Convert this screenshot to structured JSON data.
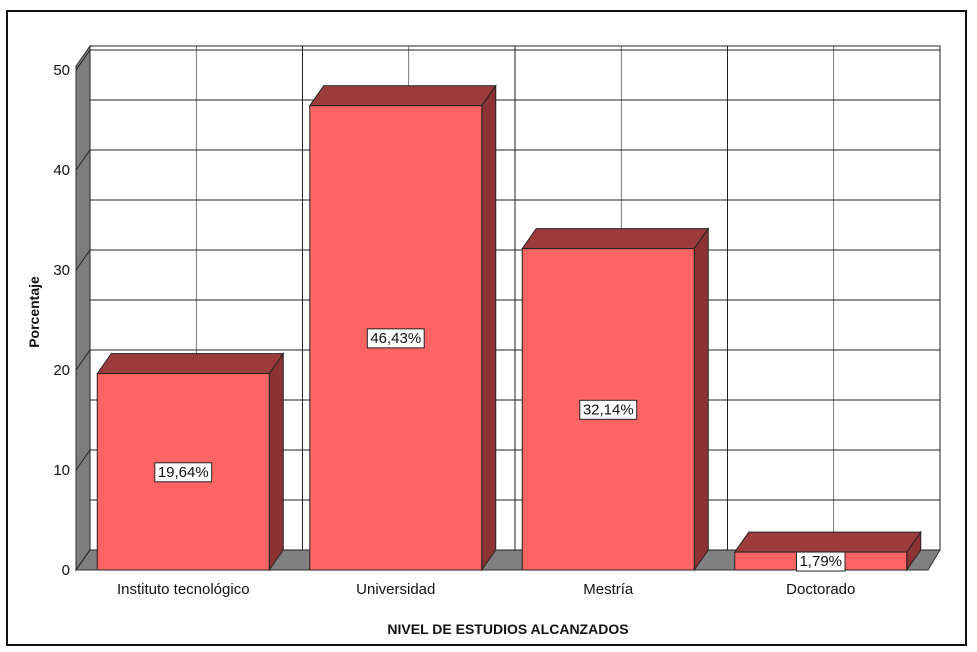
{
  "chart_data": {
    "type": "bar",
    "categories": [
      "Instituto tecnológico",
      "Universidad",
      "Mestría",
      "Doctorado"
    ],
    "values": [
      19.64,
      46.43,
      32.14,
      1.79
    ],
    "data_labels": [
      "19,64%",
      "46,43%",
      "32,14%",
      "1,79%"
    ],
    "xlabel": "NIVEL DE ESTUDIOS ALCANZADOS",
    "ylabel": "Porcentaje",
    "ylim": [
      0,
      50
    ],
    "yticks": [
      0,
      10,
      20,
      30,
      40,
      50
    ],
    "ytick_labels": [
      "0",
      "10",
      "20",
      "30",
      "40",
      "50"
    ],
    "grid": true,
    "style": "3d",
    "colors": {
      "bar_front": "#ff6464",
      "bar_top": "#9b3b3b",
      "bar_side": "#8c3232",
      "wall_side": "#7d7d7d",
      "floor": "#808080",
      "grid": "#222222"
    }
  }
}
